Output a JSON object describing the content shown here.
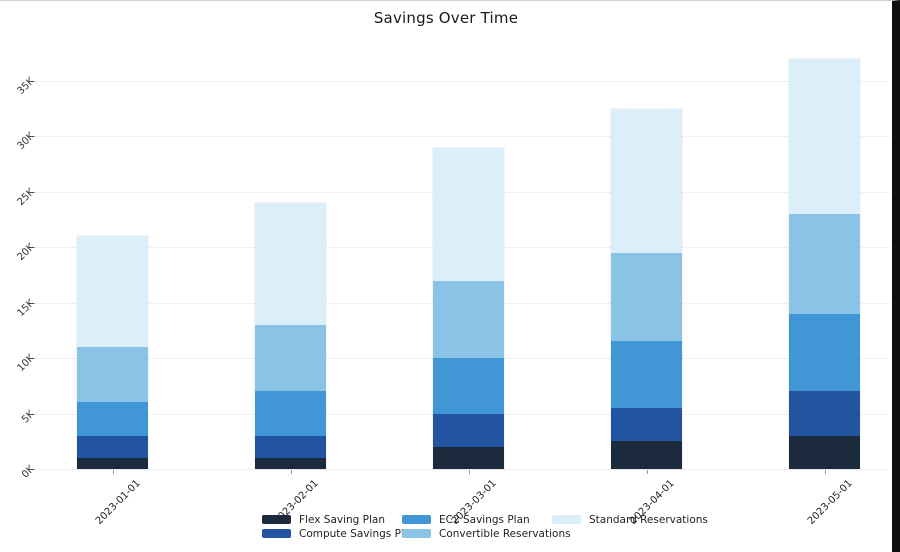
{
  "chart": {
    "title": "Savings Over Time"
  },
  "chart_data": {
    "type": "bar",
    "stacked": true,
    "title": "Savings Over Time",
    "xlabel": "",
    "ylabel": "",
    "categories": [
      "2023-01-01",
      "2023-02-01",
      "2023-03-01",
      "2023-04-01",
      "2023-05-01"
    ],
    "series": [
      {
        "name": "Flex Saving Plan",
        "color": "#1c2a3e",
        "values": [
          1000,
          1000,
          2000,
          2500,
          3000
        ]
      },
      {
        "name": "Compute Savings Plan",
        "color": "#2254a1",
        "values": [
          2000,
          2000,
          3000,
          3000,
          4000
        ]
      },
      {
        "name": "EC2 Savings Plan",
        "color": "#4197d6",
        "values": [
          3000,
          4000,
          5000,
          6000,
          7000
        ]
      },
      {
        "name": "Convertible Reservations",
        "color": "#8ac3e6",
        "values": [
          5000,
          6000,
          7000,
          8000,
          9000
        ]
      },
      {
        "name": "Standard Reservations",
        "color": "#ddeefb",
        "values": [
          10000,
          11000,
          12000,
          13000,
          14000
        ]
      }
    ],
    "stack_totals": [
      21000,
      24000,
      29000,
      32500,
      37000
    ],
    "ylim": [
      0,
      37000
    ],
    "yticks": [
      0,
      5000,
      10000,
      15000,
      20000,
      25000,
      30000,
      35000
    ],
    "ytick_labels": [
      "0K",
      "5K",
      "10K",
      "15K",
      "20K",
      "25K",
      "30K",
      "35K"
    ],
    "grid": "dotted-horizontal",
    "legend_position": "bottom-center",
    "legend_columns": 3,
    "tick_angle_deg": 45
  }
}
